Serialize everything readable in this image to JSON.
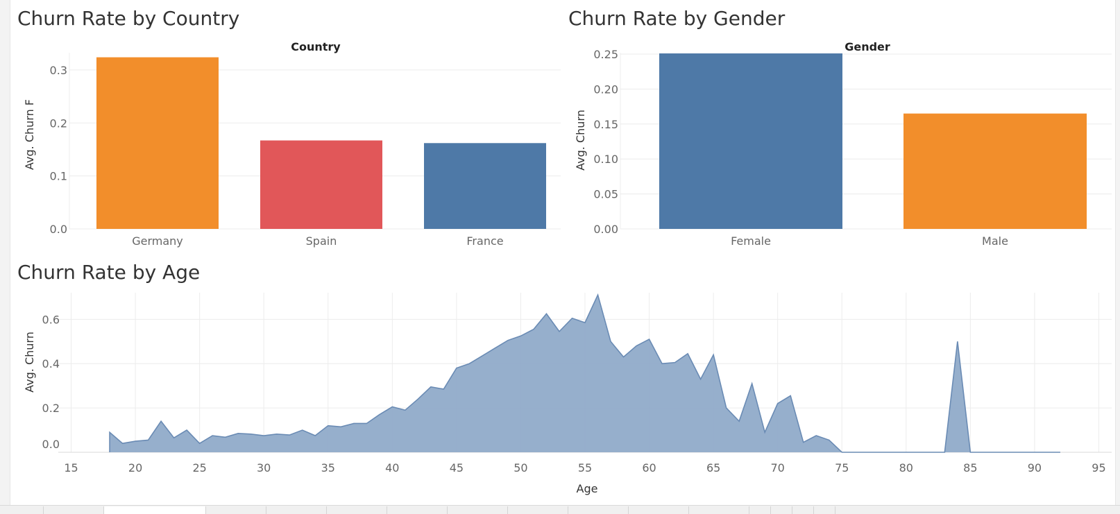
{
  "dashboard": {
    "colors": {
      "orange": "#f28e2b",
      "red": "#e15759",
      "blue": "#4e79a7",
      "area": "#90abc9",
      "area_line": "#6a8bb4"
    }
  },
  "chart_data": [
    {
      "id": "country",
      "type": "bar",
      "title": "Churn Rate by Country",
      "header": "Country",
      "ylabel": "Avg. Churn F",
      "categories": [
        "Germany",
        "Spain",
        "France"
      ],
      "values": [
        0.324,
        0.167,
        0.162
      ],
      "colors": [
        "#f28e2b",
        "#e15759",
        "#4e79a7"
      ],
      "ylim": [
        0,
        0.33
      ],
      "yticks": [
        0.0,
        0.1,
        0.2,
        0.3
      ],
      "ytick_labels": [
        "0.0",
        "0.1",
        "0.2",
        "0.3"
      ]
    },
    {
      "id": "gender",
      "type": "bar",
      "title": "Churn Rate by Gender",
      "header": "Gender",
      "ylabel": "Avg. Churn",
      "categories": [
        "Female",
        "Male"
      ],
      "values": [
        0.251,
        0.165
      ],
      "colors": [
        "#4e79a7",
        "#f28e2b"
      ],
      "ylim": [
        0,
        0.25
      ],
      "yticks": [
        0.0,
        0.05,
        0.1,
        0.15,
        0.2,
        0.25
      ],
      "ytick_labels": [
        "0.00",
        "0.05",
        "0.10",
        "0.15",
        "0.20",
        "0.25"
      ]
    },
    {
      "id": "age",
      "type": "area",
      "title": "Churn Rate by Age",
      "xlabel": "Age",
      "ylabel": "Avg. Churn",
      "xlim": [
        14,
        96
      ],
      "ylim": [
        0,
        0.72
      ],
      "xticks": [
        15,
        20,
        25,
        30,
        35,
        40,
        45,
        50,
        55,
        60,
        65,
        70,
        75,
        80,
        85,
        90,
        95
      ],
      "yticks": [
        0.0,
        0.2,
        0.4,
        0.6
      ],
      "ytick_labels": [
        "0.0",
        "0.2",
        "0.4",
        "0.6"
      ],
      "x": [
        18,
        19,
        20,
        21,
        22,
        23,
        24,
        25,
        26,
        27,
        28,
        29,
        30,
        31,
        32,
        33,
        34,
        35,
        36,
        37,
        38,
        39,
        40,
        41,
        42,
        43,
        44,
        45,
        46,
        47,
        48,
        49,
        50,
        51,
        52,
        53,
        54,
        55,
        56,
        57,
        58,
        59,
        60,
        61,
        62,
        63,
        64,
        65,
        66,
        67,
        68,
        69,
        70,
        71,
        72,
        73,
        74,
        75,
        76,
        77,
        78,
        79,
        80,
        81,
        82,
        83,
        84,
        85,
        86,
        87,
        88,
        89,
        90,
        91,
        92
      ],
      "y": [
        0.09,
        0.04,
        0.05,
        0.055,
        0.14,
        0.065,
        0.1,
        0.04,
        0.075,
        0.068,
        0.085,
        0.082,
        0.075,
        0.082,
        0.078,
        0.1,
        0.075,
        0.12,
        0.115,
        0.13,
        0.13,
        0.17,
        0.205,
        0.19,
        0.24,
        0.295,
        0.285,
        0.38,
        0.4,
        0.435,
        0.47,
        0.505,
        0.525,
        0.555,
        0.625,
        0.545,
        0.605,
        0.585,
        0.71,
        0.5,
        0.43,
        0.48,
        0.51,
        0.4,
        0.405,
        0.445,
        0.33,
        0.44,
        0.2,
        0.14,
        0.31,
        0.09,
        0.22,
        0.255,
        0.045,
        0.075,
        0.055,
        0,
        0,
        0,
        0,
        0,
        0,
        0,
        0,
        0,
        0.5,
        0,
        0,
        0,
        0,
        0,
        0,
        0,
        0
      ]
    }
  ]
}
